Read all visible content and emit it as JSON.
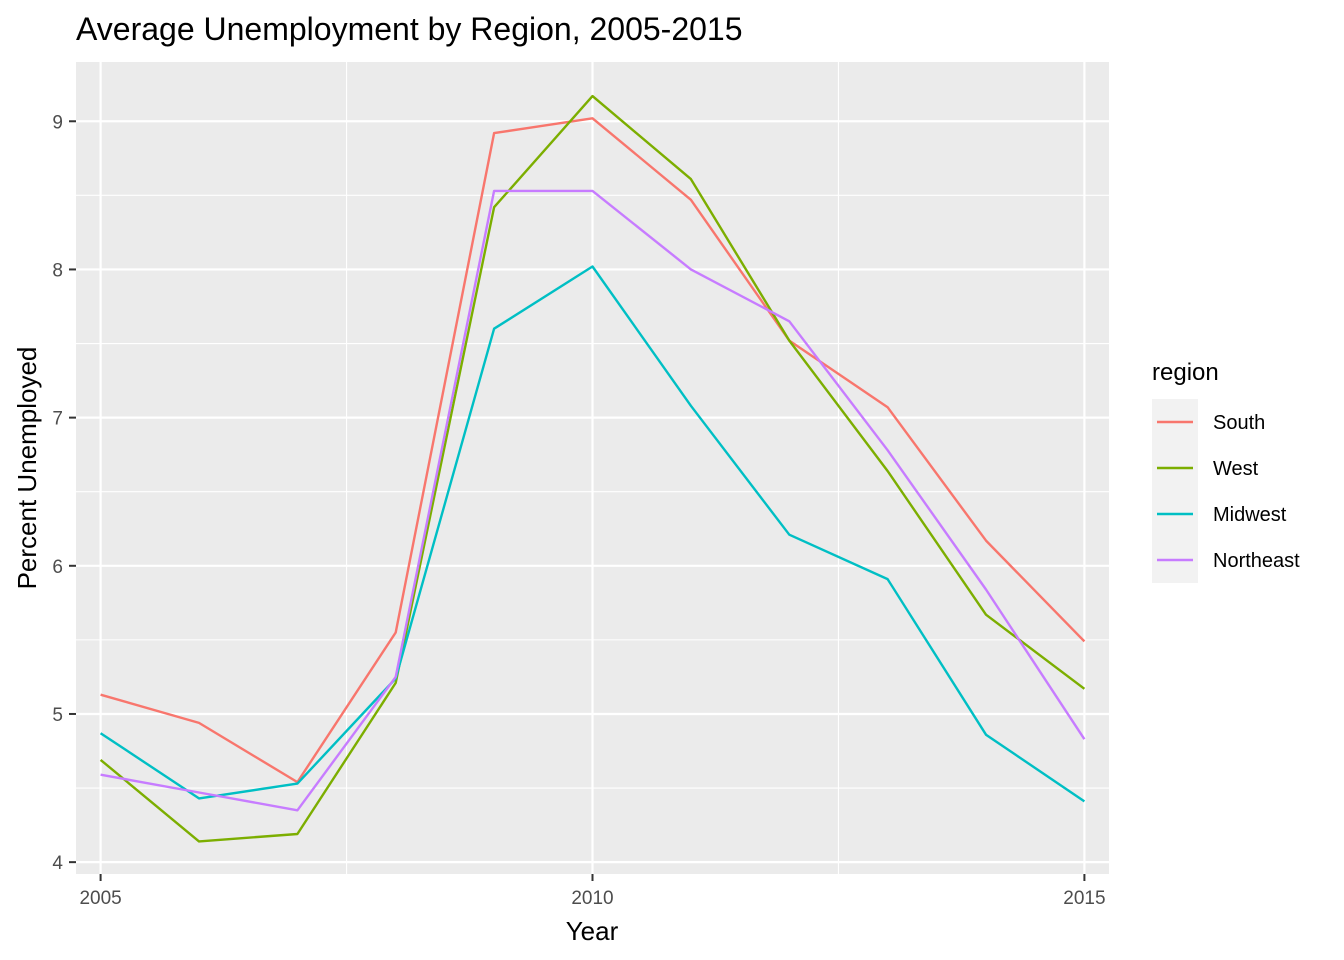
{
  "chart_data": {
    "type": "line",
    "title": "Average Unemployment by Region, 2005-2015",
    "xlabel": "Year",
    "ylabel": "Percent Unemployed",
    "xlim": [
      2004.75,
      2015.25
    ],
    "ylim": [
      3.92,
      9.4
    ],
    "x_ticks": [
      2005,
      2010,
      2015
    ],
    "y_ticks": [
      4,
      5,
      6,
      7,
      8,
      9
    ],
    "grid": true,
    "legend": {
      "title": "region",
      "position": "right"
    },
    "x": [
      2005,
      2006,
      2007,
      2008,
      2009,
      2010,
      2011,
      2012,
      2013,
      2014,
      2015
    ],
    "series": [
      {
        "name": "South",
        "color": "#F8766D",
        "values": [
          5.13,
          4.94,
          4.54,
          5.55,
          8.92,
          9.02,
          8.47,
          7.52,
          7.07,
          6.17,
          5.49
        ]
      },
      {
        "name": "West",
        "color": "#7CAE00",
        "values": [
          4.69,
          4.14,
          4.19,
          5.21,
          8.42,
          9.17,
          8.61,
          7.52,
          6.64,
          5.67,
          5.17
        ]
      },
      {
        "name": "Midwest",
        "color": "#00BFC4",
        "values": [
          4.87,
          4.43,
          4.53,
          5.24,
          7.6,
          8.02,
          7.08,
          6.21,
          5.91,
          4.86,
          4.41
        ]
      },
      {
        "name": "Northeast",
        "color": "#C77CFF",
        "values": [
          4.59,
          4.47,
          4.35,
          5.25,
          8.53,
          8.53,
          8.0,
          7.65,
          6.78,
          5.84,
          4.83
        ]
      }
    ]
  }
}
